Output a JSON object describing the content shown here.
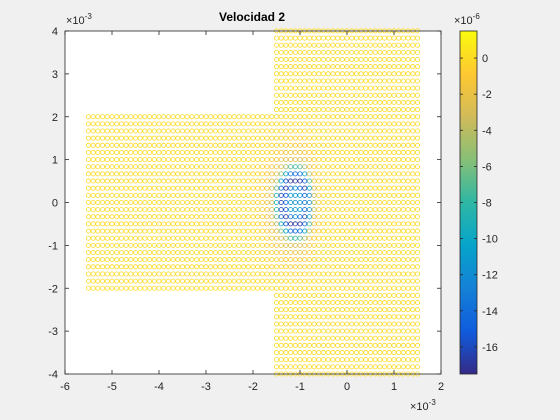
{
  "chart_data": {
    "type": "scatter",
    "title": "Velocidad 2",
    "xlabel": "",
    "ylabel": "",
    "x_exponent": "×10",
    "x_exponent_power": "-3",
    "y_exponent": "×10",
    "y_exponent_power": "-3",
    "xlim": [
      -6,
      2
    ],
    "ylim": [
      -4,
      4
    ],
    "x_ticks": [
      -6,
      -5,
      -4,
      -3,
      -2,
      -1,
      0,
      1,
      2
    ],
    "x_tick_labels": [
      "-6",
      "-5",
      "-4",
      "-3",
      "-2",
      "-1",
      "0",
      "1",
      "2"
    ],
    "y_ticks": [
      -4,
      -3,
      -2,
      -1,
      0,
      1,
      2,
      3,
      4
    ],
    "y_tick_labels": [
      "-4",
      "-3",
      "-2",
      "-1",
      "0",
      "1",
      "2",
      "3",
      "4"
    ],
    "marker": "open-circle",
    "grid": false,
    "regions": [
      {
        "x_range": [
          -5.5,
          -1.5
        ],
        "y_range": [
          -2.0,
          2.0
        ]
      },
      {
        "x_range": [
          -1.5,
          1.5
        ],
        "y_range": [
          -4.0,
          4.0
        ]
      }
    ],
    "grid_spacing": {
      "dx": 0.1,
      "dy": 0.1667
    },
    "vortex": {
      "center_x": -1.1,
      "center_y": 0.0,
      "min_value": -17,
      "radius_x": 0.6,
      "radius_y": 1.2
    },
    "colorbar": {
      "colormap": "parula",
      "range": [
        -17.5,
        1.5
      ],
      "ticks": [
        0,
        -2,
        -4,
        -6,
        -8,
        -10,
        -12,
        -14,
        -16
      ],
      "tick_labels": [
        "0",
        "-2",
        "-4",
        "-6",
        "-8",
        "-10",
        "-12",
        "-14",
        "-16"
      ],
      "exponent": "×10",
      "exponent_power": "-6",
      "colors": [
        "#352a87",
        "#0f5cdd",
        "#1481d6",
        "#06a4ca",
        "#2eb7a4",
        "#87bf77",
        "#d1bb59",
        "#fec832",
        "#f9fb0e"
      ]
    }
  }
}
